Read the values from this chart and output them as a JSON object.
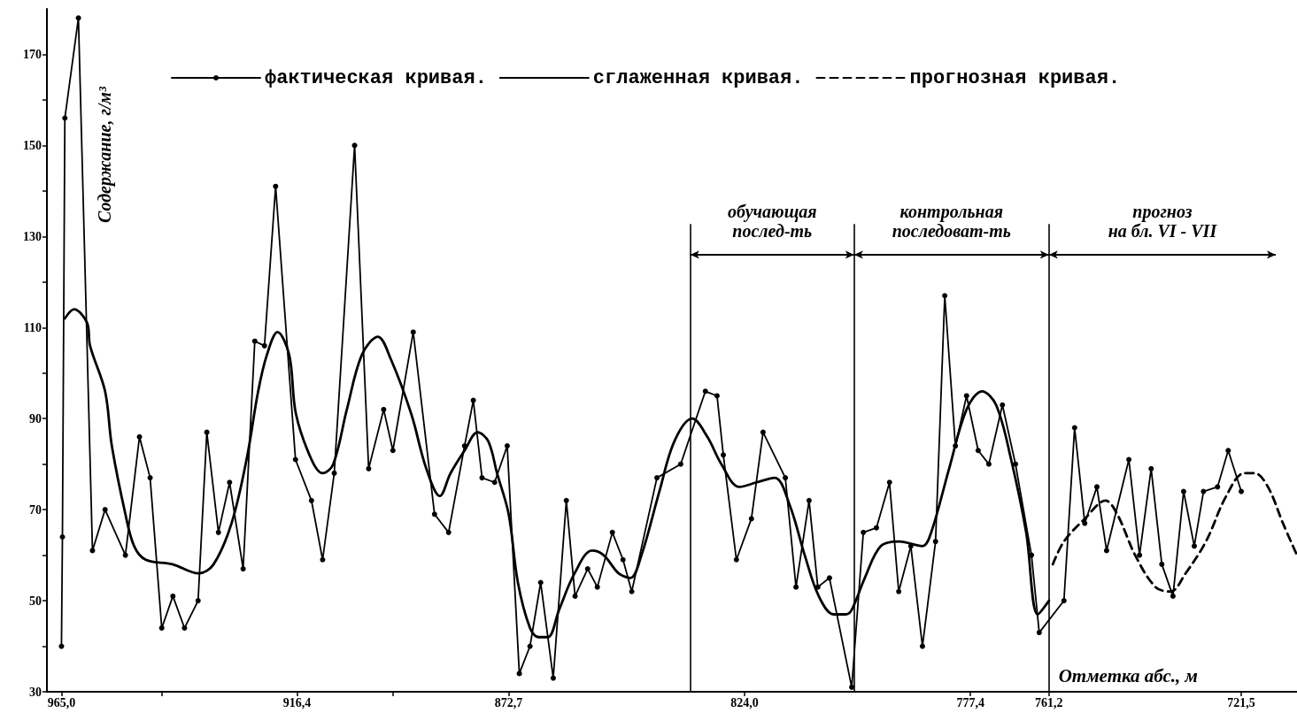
{
  "chart_data": {
    "type": "line",
    "xlabel": "Отметка абс., м",
    "ylabel": "Содержание, г/м³",
    "xlim": [
      968,
      710
    ],
    "ylim": [
      30,
      180
    ],
    "xticks": [
      {
        "value": 965.0,
        "label": "965,0"
      },
      {
        "value": 944.3,
        "label": null
      },
      {
        "value": 916.4,
        "label": "916,4"
      },
      {
        "value": 896.6,
        "label": null
      },
      {
        "value": 872.7,
        "label": "872,7"
      },
      {
        "value": 824.0,
        "label": "824,0"
      },
      {
        "value": 777.4,
        "label": "777,4"
      },
      {
        "value": 761.2,
        "label": "761,2"
      },
      {
        "value": 721.5,
        "label": "721,5"
      }
    ],
    "yticks": [
      30,
      {
        "value": 40,
        "label": null
      },
      50,
      {
        "value": 60,
        "label": null
      },
      70,
      {
        "value": 80,
        "label": null
      },
      90,
      {
        "value": 100,
        "label": null
      },
      110,
      {
        "value": 120,
        "label": null
      },
      130,
      {
        "value": 140,
        "label": null
      },
      150,
      {
        "value": 160,
        "label": null
      },
      170
    ],
    "legend": "top",
    "series": [
      {
        "name": "фактическая кривая.",
        "color": "#000000",
        "marker": "circle",
        "line_style": "solid",
        "x": [
          965.0,
          964.8,
          964.3,
          961.5,
          958.6,
          956.0,
          951.8,
          948.9,
          946.7,
          944.3,
          942.0,
          939.6,
          936.8,
          935.0,
          932.6,
          930.3,
          927.5,
          925.1,
          923.1,
          920.8,
          916.7,
          913.4,
          911.1,
          908.7,
          904.5,
          901.6,
          898.5,
          896.6,
          892.4,
          888.0,
          885.1,
          881.8,
          880.0,
          878.2,
          875.6,
          873.0,
          870.5,
          868.3,
          866.1,
          863.5,
          860.8,
          859.0,
          856.4,
          854.4,
          851.3,
          849.1,
          847.3,
          842.1,
          837.2,
          832.1,
          829.7,
          828.4,
          825.7,
          822.6,
          820.2,
          815.6,
          813.4,
          810.7,
          808.9,
          806.5,
          801.9,
          799.5,
          796.8,
          794.1,
          792.2,
          789.7,
          787.3,
          784.6,
          782.7,
          780.5,
          778.2,
          775.8,
          773.6,
          770.8,
          768.1,
          764.8,
          763.2,
          758.1,
          755.9,
          753.8,
          751.3,
          749.3,
          744.7,
          742.5,
          740.1,
          737.9,
          735.6,
          733.4,
          731.2,
          729.3,
          726.4,
          724.2,
          721.5
        ],
        "values": [
          40,
          64,
          156,
          178,
          61,
          70,
          60,
          86,
          77,
          44,
          51,
          44,
          50,
          87,
          65,
          76,
          57,
          107,
          106,
          141,
          81,
          72,
          59,
          78,
          150,
          79,
          92,
          83,
          109,
          69,
          65,
          84,
          94,
          77,
          76,
          84,
          34,
          40,
          54,
          33,
          72,
          51,
          57,
          53,
          65,
          59,
          52,
          77,
          80,
          96,
          95,
          82,
          59,
          68,
          87,
          77,
          53,
          72,
          53,
          55,
          31,
          65,
          66,
          76,
          52,
          62,
          40,
          63,
          117,
          84,
          95,
          83,
          80,
          93,
          80,
          60,
          43,
          50,
          88,
          67,
          75,
          61,
          81,
          60,
          79,
          58,
          51,
          74,
          62,
          74,
          75,
          83,
          74
        ]
      },
      {
        "name": "сглаженная кривая.",
        "color": "#000000",
        "marker": "none",
        "line_style": "solid",
        "x": [
          964.3,
          962.4,
          959.7,
          959.1,
          956.0,
          954.6,
          951.8,
          950.0,
          947.6,
          942.1,
          936.7,
          933.6,
          929.9,
          926.8,
          924.4,
          922.6,
          920.4,
          918.0,
          916.6,
          913.4,
          911.1,
          908.9,
          906.1,
          903.0,
          899.7,
          897.0,
          892.8,
          889.7,
          886.9,
          884.7,
          881.8,
          879.1,
          876.9,
          875.1,
          872.7,
          870.8,
          868.3,
          866.5,
          864.6,
          862.3,
          859.1,
          855.5,
          853.1,
          850.0,
          847.6,
          845.3,
          841.6,
          838.5,
          834.8,
          831.7,
          828.8,
          825.1,
          821.5,
          817.8,
          814.7,
          811.6,
          808.7,
          805.6,
          803.2,
          801.9,
          799.2,
          795.9,
          792.2,
          787.3,
          785.5,
          781.8,
          778.2,
          775.0,
          772.1,
          769.0,
          765.9,
          763.5,
          761.2
        ],
        "values": [
          112,
          114,
          111,
          106,
          96,
          84,
          69,
          62,
          59,
          58,
          56,
          58,
          67,
          81,
          96,
          104,
          109,
          104,
          91,
          81,
          78,
          80,
          92,
          104,
          108,
          103,
          91,
          79,
          73,
          78,
          83,
          87,
          85,
          78,
          69,
          54,
          44,
          42,
          42,
          48,
          56,
          61,
          60,
          56,
          55,
          60,
          74,
          85,
          90,
          86,
          80,
          75,
          76,
          77,
          71,
          60,
          51,
          47,
          47,
          48,
          55,
          62,
          63,
          62,
          65,
          79,
          92,
          96,
          93,
          81,
          65,
          47,
          50
        ]
      },
      {
        "name": "прогнозная кривая.",
        "color": "#000000",
        "marker": "none",
        "line_style": "dashed",
        "x": [
          760.4,
          758.1,
          753.8,
          749.5,
          747.1,
          743.4,
          739.2,
          736.1,
          733.0,
          728.8,
          724.6,
          720.9,
          718.7,
          716.0,
          712.9,
          710.0
        ],
        "values": [
          58,
          63,
          68,
          72,
          69,
          60,
          53,
          52,
          56,
          63,
          73,
          78,
          78,
          75,
          67,
          60
        ]
      }
    ],
    "ref_lines": [
      {
        "axis": "x",
        "value": 835.2
      },
      {
        "axis": "x",
        "value": 801.4
      },
      {
        "axis": "x",
        "value": 761.2
      }
    ],
    "annotations": [
      "обучающая\nпослед-ть",
      "контрольная\nпоследоват-ть",
      "прогноз\nна бл. VI - VII"
    ]
  }
}
